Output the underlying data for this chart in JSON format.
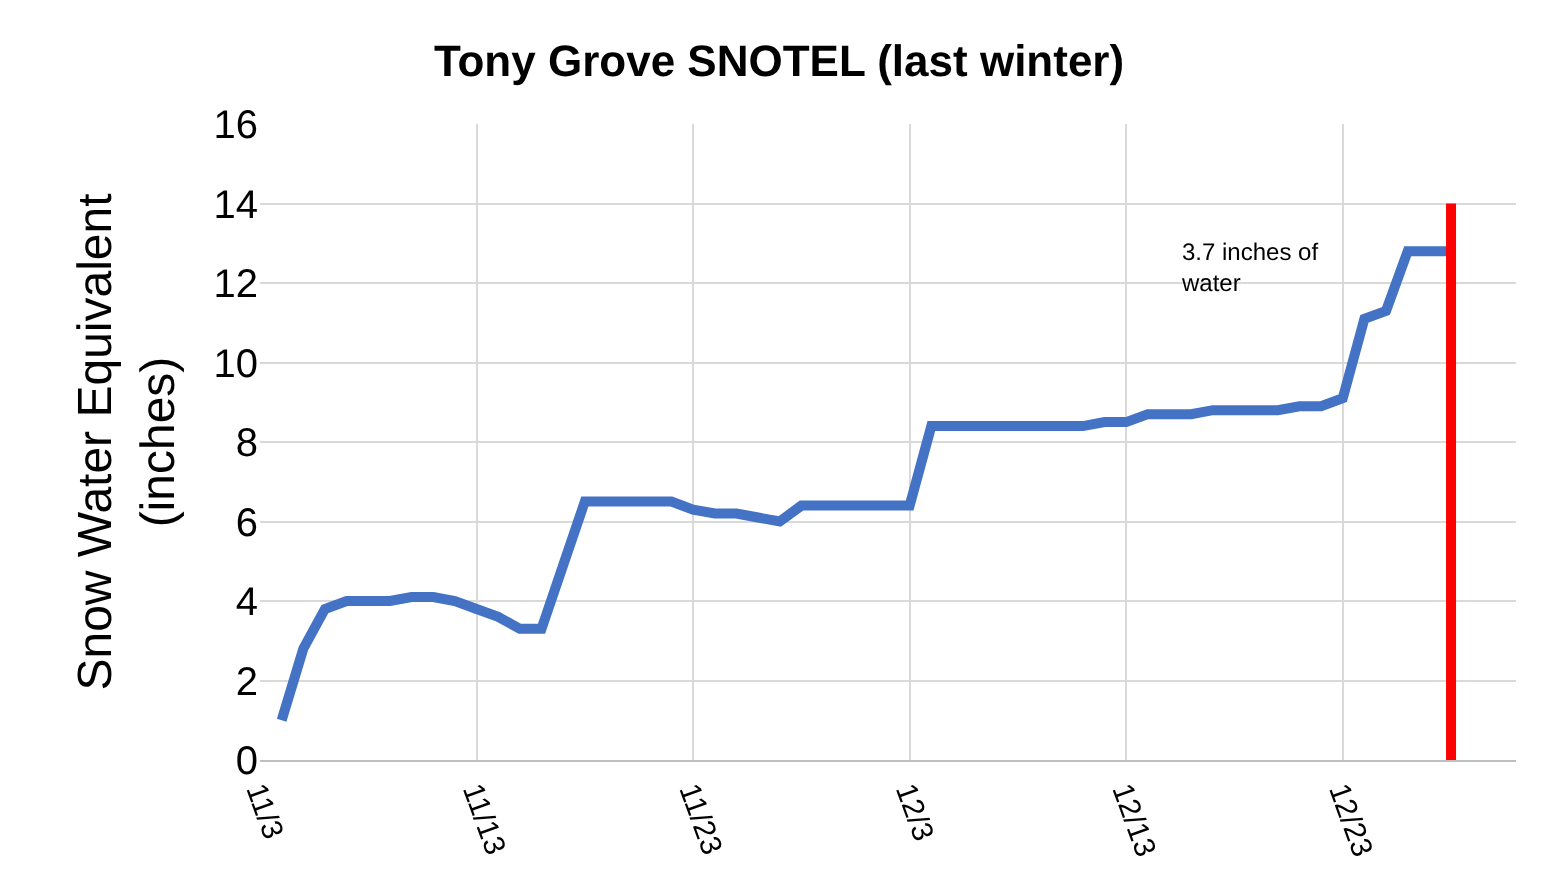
{
  "chart_data": {
    "type": "line",
    "title": "Tony Grove SNOTEL (last winter)",
    "ylabel": "Snow Water Equivalent\n(inches)",
    "annotations": [
      "3.7 inches of\nwater"
    ],
    "series": [
      {
        "color": "#4472c4",
        "x": [
          "--11-04",
          "--11-05",
          "--11-06",
          "--11-07",
          "--11-08",
          "--11-09",
          "--11-10",
          "--11-11",
          "--11-12",
          "--11-13",
          "--11-14",
          "--11-15",
          "--11-16",
          "--11-17",
          "--11-18",
          "--11-19",
          "--11-20",
          "--11-21",
          "--11-22",
          "--11-23",
          "--11-24",
          "--11-25",
          "--11-26",
          "--11-27",
          "--11-28",
          "--11-29",
          "--11-30",
          "--12-01",
          "--12-02",
          "--12-03",
          "--12-04",
          "--12-05",
          "--12-06",
          "--12-07",
          "--12-08",
          "--12-09",
          "--12-10",
          "--12-11",
          "--12-12",
          "--12-13",
          "--12-14",
          "--12-15",
          "--12-16",
          "--12-17",
          "--12-18",
          "--12-19",
          "--12-20",
          "--12-21",
          "--12-22",
          "--12-23",
          "--12-24",
          "--12-25",
          "--12-26",
          "--12-27",
          "--12-28"
        ],
        "values": [
          1.0,
          2.8,
          3.8,
          4.0,
          4.0,
          4.0,
          4.1,
          4.1,
          4.0,
          3.8,
          3.6,
          3.3,
          3.3,
          4.9,
          6.5,
          6.5,
          6.5,
          6.5,
          6.5,
          6.3,
          6.2,
          6.2,
          6.1,
          6.0,
          6.4,
          6.4,
          6.4,
          6.4,
          6.4,
          6.4,
          8.4,
          8.4,
          8.4,
          8.4,
          8.4,
          8.4,
          8.4,
          8.4,
          8.5,
          8.5,
          8.7,
          8.7,
          8.7,
          8.8,
          8.8,
          8.8,
          8.8,
          8.9,
          8.9,
          9.1,
          11.1,
          11.3,
          12.8,
          12.8,
          12.8
        ]
      },
      {
        "color": "#ff0000",
        "x": [
          "--12-28",
          "--12-28"
        ],
        "values": [
          0,
          14
        ]
      }
    ],
    "xlim": [
      "--11-03",
      "--12-31"
    ],
    "xticks": [
      {
        "value": "--11-03",
        "label": "11/3"
      },
      {
        "value": "--11-13",
        "label": "11/13"
      },
      {
        "value": "--11-23",
        "label": "11/23"
      },
      {
        "value": "--12-03",
        "label": "12/3"
      },
      {
        "value": "--12-13",
        "label": "12/13"
      },
      {
        "value": "--12-23",
        "label": "12/23"
      }
    ],
    "ylim": [
      0,
      16
    ],
    "yticks": [
      0,
      2,
      4,
      6,
      8,
      10,
      12,
      14,
      16
    ],
    "grid": true,
    "marker": "none",
    "line_style": "solid"
  }
}
